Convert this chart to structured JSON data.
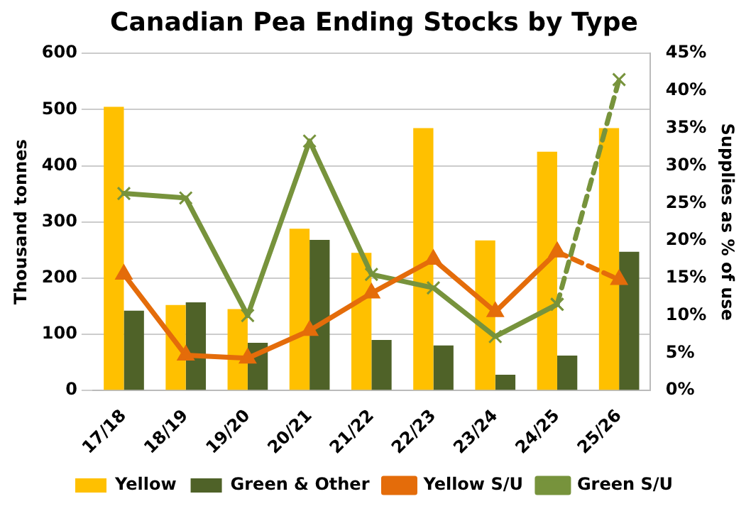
{
  "chart_data": {
    "type": "bar",
    "title": "Canadian Pea Ending Stocks by Type",
    "ylabel": "Thousand tonnes",
    "y2label": "Supplies as % of use",
    "categories": [
      "17/18",
      "18/19",
      "19/20",
      "20/21",
      "21/22",
      "22/23",
      "23/24",
      "24/25",
      "25/26"
    ],
    "series": [
      {
        "name": "Yellow",
        "color": "#ffc000",
        "values": [
          505,
          152,
          145,
          288,
          245,
          467,
          267,
          425,
          467
        ]
      },
      {
        "name": "Green & Other",
        "color": "#4f6228",
        "values": [
          142,
          157,
          85,
          268,
          90,
          80,
          28,
          62,
          247
        ]
      },
      {
        "name": "Yellow S/U",
        "type": "line",
        "axis": "y2",
        "color": "#e46c0a",
        "marker": "triangle",
        "line_style": "solid",
        "values": [
          15.5,
          4.7,
          4.3,
          8,
          13,
          17.5,
          10.5,
          18.5,
          null
        ]
      },
      {
        "name": "Green S/U",
        "type": "line",
        "axis": "y2",
        "color": "#77933c",
        "marker": "cross",
        "line_style": "solid",
        "values": [
          26.3,
          25.7,
          10,
          33.3,
          15.5,
          13.7,
          7.2,
          11.5,
          null
        ]
      },
      {
        "type": "line",
        "axis": "y2",
        "color": "#e46c0a",
        "marker": "triangle",
        "line_style": "dashed",
        "values": [
          null,
          null,
          null,
          null,
          null,
          null,
          null,
          18.5,
          14.8
        ]
      },
      {
        "type": "line",
        "axis": "y2",
        "color": "#77933c",
        "marker": "cross",
        "line_style": "dashed",
        "values": [
          null,
          null,
          null,
          null,
          null,
          null,
          null,
          11.5,
          41.5
        ]
      }
    ],
    "ylim": [
      0,
      600
    ],
    "yticks": [
      0,
      100,
      200,
      300,
      400,
      500,
      600
    ],
    "y2lim": [
      0,
      45
    ],
    "y2ticks": [
      {
        "value": 0,
        "label": "0%"
      },
      {
        "value": 5,
        "label": "5%"
      },
      {
        "value": 10,
        "label": "10%"
      },
      {
        "value": 15,
        "label": "15%"
      },
      {
        "value": 20,
        "label": "20%"
      },
      {
        "value": 25,
        "label": "25%"
      },
      {
        "value": 30,
        "label": "30%"
      },
      {
        "value": 35,
        "label": "35%"
      },
      {
        "value": 40,
        "label": "40%"
      },
      {
        "value": 45,
        "label": "45%"
      }
    ],
    "grid": "y",
    "legend": "bottom"
  }
}
